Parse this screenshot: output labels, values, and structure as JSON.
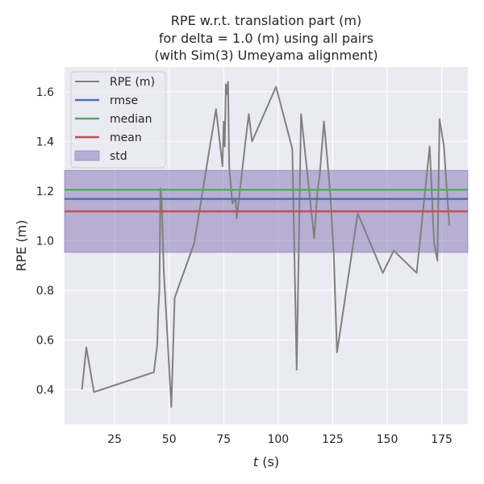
{
  "chart_data": {
    "type": "line",
    "title_lines": [
      "RPE w.r.t. translation part (m)",
      "for delta = 1.0 (m) using all pairs",
      "(with Sim(3) Umeyama alignment)"
    ],
    "xlabel_italic": "t",
    "xlabel_unit": " (s)",
    "ylabel": "RPE (m)",
    "xlim": [
      2,
      187
    ],
    "ylim": [
      0.26,
      1.7
    ],
    "x_ticks": [
      25,
      50,
      75,
      100,
      125,
      150,
      175
    ],
    "y_ticks": [
      0.4,
      0.6,
      0.8,
      1.0,
      1.2,
      1.4,
      1.6
    ],
    "x_tick_labels": [
      "25",
      "50",
      "75",
      "100",
      "125",
      "150",
      "175"
    ],
    "y_tick_labels": [
      "0.4",
      "0.6",
      "0.8",
      "1.0",
      "1.2",
      "1.4",
      "1.6"
    ],
    "grid": true,
    "legend_position": "top-left",
    "background_color": "#eaeaf2",
    "series": [
      {
        "name": "RPE (m)",
        "color": "#808080",
        "x": [
          10,
          12,
          15.5,
          43,
          44.5,
          45,
          45.5,
          46,
          46.5,
          47.5,
          51,
          52.5,
          61.5,
          67,
          71.5,
          74.5,
          75,
          75.5,
          76,
          76.5,
          77,
          77.5,
          79,
          80.5,
          81,
          85,
          86.5,
          88,
          99,
          106.5,
          108.5,
          110.5,
          116.5,
          118,
          119,
          121,
          124,
          125.5,
          127,
          136.5,
          148,
          153,
          163.5,
          169.5,
          171.5,
          173,
          174,
          176,
          178.5
        ],
        "y": [
          0.4,
          0.57,
          0.39,
          0.47,
          0.58,
          0.72,
          0.8,
          1.21,
          1.17,
          0.88,
          0.33,
          0.77,
          0.99,
          1.29,
          1.53,
          1.3,
          1.48,
          1.38,
          1.63,
          1.59,
          1.64,
          1.3,
          1.15,
          1.17,
          1.09,
          1.4,
          1.51,
          1.4,
          1.62,
          1.37,
          0.48,
          1.51,
          1.01,
          1.2,
          1.26,
          1.48,
          1.18,
          0.94,
          0.55,
          1.11,
          0.87,
          0.96,
          0.87,
          1.38,
          0.99,
          0.92,
          1.49,
          1.38,
          1.06
        ]
      },
      {
        "name": "rmse",
        "color": "#4c72b0",
        "value": 1.168
      },
      {
        "name": "median",
        "color": "#55a868",
        "value": 1.205
      },
      {
        "name": "mean",
        "color": "#c44e52",
        "value": 1.118
      },
      {
        "name": "std",
        "color": "#8172b3",
        "range": [
          0.953,
          1.283
        ]
      }
    ]
  }
}
